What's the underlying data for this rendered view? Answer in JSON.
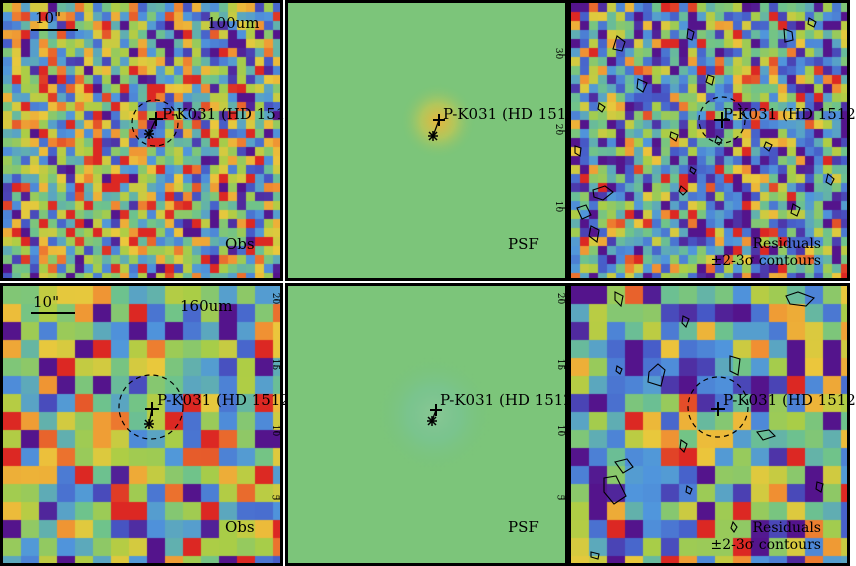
{
  "source_name": "P-K031 (HD 1512",
  "rows": [
    {
      "band_label": "100um",
      "scale_label": "10\"",
      "panels": [
        {
          "type": "observation",
          "label": "Obs"
        },
        {
          "type": "psf",
          "label": "PSF",
          "ticks": [
            "30",
            "20",
            "10"
          ]
        },
        {
          "type": "residual",
          "label_line1": "Residuals",
          "label_line2": "±2-3σ contours"
        }
      ]
    },
    {
      "band_label": "160um",
      "scale_label": "10\"",
      "panels": [
        {
          "type": "observation",
          "label": "Obs",
          "ticks": [
            "20",
            "15",
            "10",
            "5"
          ]
        },
        {
          "type": "psf",
          "label": "PSF",
          "ticks": [
            "20",
            "15",
            "10",
            "5"
          ]
        },
        {
          "type": "residual",
          "label_line1": "Residuals",
          "label_line2": "±2-3σ contours"
        }
      ]
    }
  ],
  "colors": {
    "panel_border": "#000000",
    "psf_background": "#7cc57a",
    "psf_peak": "#e8b43c"
  },
  "markers": [
    "cross-icon",
    "asterisk-icon",
    "dashed-circle-aperture"
  ]
}
